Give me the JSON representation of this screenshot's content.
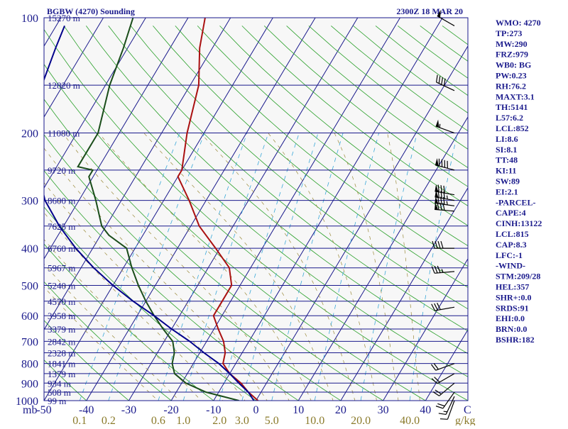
{
  "chart_data": {
    "type": "line",
    "title_left": "BGBW (4270) Sounding",
    "title_right": "2300Z 18 MAR 20",
    "xlabel_left": "mb",
    "xlabel_right": "C",
    "mixing_ratio_unit": "g/kg",
    "x_ticks": [
      "-50",
      "-40",
      "-30",
      "-20",
      "-10",
      "0",
      "10",
      "20",
      "30",
      "40"
    ],
    "x_tick_values": [
      -50,
      -40,
      -30,
      -20,
      -10,
      0,
      10,
      20,
      30,
      40
    ],
    "xlim": [
      -50,
      50
    ],
    "ylim_mb": [
      1000,
      100
    ],
    "y_scale": "log",
    "pressure_ticks": [
      "100",
      "200",
      "300",
      "400",
      "500",
      "600",
      "700",
      "800",
      "900",
      "1000"
    ],
    "pressure_tick_values": [
      100,
      200,
      300,
      400,
      500,
      600,
      700,
      800,
      900,
      1000
    ],
    "mixing_ratio_labels": [
      "0.1",
      "0.2",
      "0.6",
      "1.0",
      "2.0",
      "3.0",
      "5.0",
      "10.0",
      "20.0",
      "40.0"
    ],
    "mixing_ratio_values": [
      0.1,
      0.2,
      0.6,
      1.0,
      2.0,
      3.0,
      5.0,
      10.0,
      20.0,
      40.0
    ],
    "height_labels": [
      {
        "p": 100,
        "text": "15270 m"
      },
      {
        "p": 150,
        "text": "12820 m"
      },
      {
        "p": 200,
        "text": "11080 m"
      },
      {
        "p": 250,
        "text": "9720 m"
      },
      {
        "p": 300,
        "text": "8600 m"
      },
      {
        "p": 350,
        "text": "7625 m"
      },
      {
        "p": 400,
        "text": "6760 m"
      },
      {
        "p": 450,
        "text": "5967 m"
      },
      {
        "p": 500,
        "text": "5240 m"
      },
      {
        "p": 550,
        "text": "4570 m"
      },
      {
        "p": 600,
        "text": "3958 m"
      },
      {
        "p": 650,
        "text": "3379 m"
      },
      {
        "p": 700,
        "text": "2842 m"
      },
      {
        "p": 750,
        "text": "2328 m"
      },
      {
        "p": 800,
        "text": "1841 m"
      },
      {
        "p": 850,
        "text": "1379 m"
      },
      {
        "p": 900,
        "text": "934 m"
      },
      {
        "p": 950,
        "text": "508 m"
      },
      {
        "p": 1000,
        "text": "99 m"
      }
    ],
    "series": [
      {
        "name": "",
        "color": "#aa1111",
        "points": [
          [
            1000,
            0.5
          ],
          [
            950,
            -3
          ],
          [
            900,
            -6
          ],
          [
            850,
            -10
          ],
          [
            800,
            -13
          ],
          [
            750,
            -14
          ],
          [
            700,
            -16
          ],
          [
            650,
            -19
          ],
          [
            600,
            -22
          ],
          [
            550,
            -22
          ],
          [
            500,
            -22
          ],
          [
            450,
            -25
          ],
          [
            400,
            -31
          ],
          [
            350,
            -38
          ],
          [
            300,
            -44
          ],
          [
            260,
            -50
          ],
          [
            250,
            -50
          ],
          [
            200,
            -54
          ],
          [
            150,
            -58
          ],
          [
            120,
            -63
          ],
          [
            100,
            -66
          ]
        ]
      },
      {
        "name": "",
        "color": "#1a4d1a",
        "points": [
          [
            1000,
            -4
          ],
          [
            950,
            -13
          ],
          [
            900,
            -19
          ],
          [
            850,
            -23
          ],
          [
            800,
            -25
          ],
          [
            750,
            -26
          ],
          [
            700,
            -28
          ],
          [
            650,
            -32
          ],
          [
            600,
            -36
          ],
          [
            550,
            -40
          ],
          [
            500,
            -44
          ],
          [
            450,
            -48
          ],
          [
            400,
            -52
          ],
          [
            370,
            -58
          ],
          [
            350,
            -61
          ],
          [
            300,
            -66
          ],
          [
            260,
            -71
          ],
          [
            250,
            -71
          ],
          [
            245,
            -75
          ],
          [
            200,
            -75
          ],
          [
            150,
            -79
          ],
          [
            120,
            -81
          ],
          [
            100,
            -83
          ]
        ]
      },
      {
        "name": "",
        "color": "#00008b",
        "points": [
          [
            1000,
            -0.5
          ],
          [
            950,
            -3
          ],
          [
            900,
            -6.5
          ],
          [
            850,
            -10
          ],
          [
            800,
            -14
          ],
          [
            750,
            -19
          ],
          [
            700,
            -24
          ],
          [
            650,
            -30
          ],
          [
            600,
            -36
          ],
          [
            550,
            -43
          ],
          [
            500,
            -50
          ],
          [
            450,
            -57
          ],
          [
            400,
            -64
          ],
          [
            350,
            -71
          ],
          [
            300,
            -78
          ],
          [
            250,
            -84
          ],
          [
            200,
            -90
          ],
          [
            150,
            -95
          ],
          [
            120,
            -97
          ],
          [
            105,
            -98
          ]
        ]
      }
    ],
    "wind_barbs": [
      {
        "p": 1000,
        "dir": 200,
        "kt": 10
      },
      {
        "p": 975,
        "dir": 205,
        "kt": 15
      },
      {
        "p": 950,
        "dir": 215,
        "kt": 20
      },
      {
        "p": 900,
        "dir": 230,
        "kt": 20
      },
      {
        "p": 850,
        "dir": 240,
        "kt": 20
      },
      {
        "p": 800,
        "dir": 250,
        "kt": 20
      },
      {
        "p": 570,
        "dir": 260,
        "kt": 30
      },
      {
        "p": 460,
        "dir": 265,
        "kt": 35
      },
      {
        "p": 400,
        "dir": 270,
        "kt": 40
      },
      {
        "p": 320,
        "dir": 275,
        "kt": 80
      },
      {
        "p": 310,
        "dir": 278,
        "kt": 85
      },
      {
        "p": 300,
        "dir": 280,
        "kt": 85
      },
      {
        "p": 290,
        "dir": 280,
        "kt": 80
      },
      {
        "p": 250,
        "dir": 285,
        "kt": 90
      },
      {
        "p": 200,
        "dir": 290,
        "kt": 55
      },
      {
        "p": 155,
        "dir": 295,
        "kt": 40
      },
      {
        "p": 105,
        "dir": 300,
        "kt": 50
      }
    ]
  },
  "indices": [
    "WMO: 4270",
    "TP:273",
    "MW:290",
    "FRZ:979",
    "WB0: BG",
    "PW:0.23",
    "RH:76.2",
    "MAXT:3.1",
    "TH:5141",
    "L57:6.2",
    "LCL:852",
    "LI:8.6",
    "SI:8.1",
    "TT:48",
    "KI:11",
    "SW:89",
    "EI:2.1",
    "-PARCEL-",
    "CAPE:4",
    "CINH:13122",
    "LCL:815",
    "CAP:8.3",
    "LFC:-1",
    "-WIND-",
    "STM:209/28",
    "HEL:357",
    "SHR+:0.0",
    "SRDS:91",
    "EHI:0.0",
    "BRN:0.0",
    "BSHR:182"
  ]
}
